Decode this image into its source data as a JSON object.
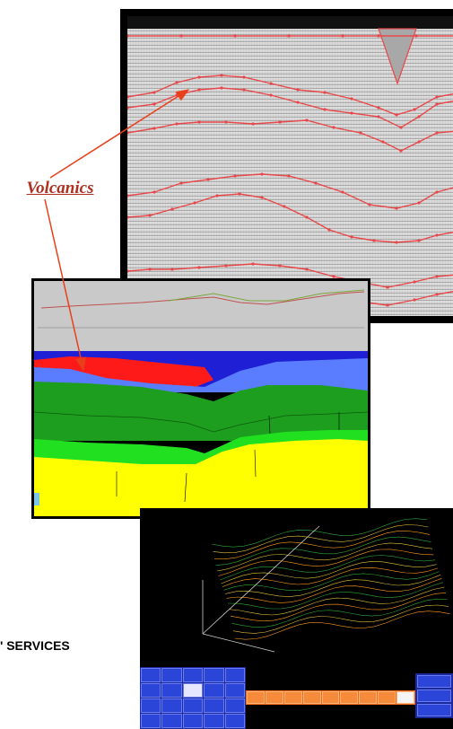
{
  "callout": {
    "label": "Volcanics",
    "color": "#b03020"
  },
  "side_text": {
    "services": "' SERVICES"
  },
  "seismic_panel": {
    "colors": {
      "horizon": "#e8474a",
      "background": "#bdbdbd"
    }
  },
  "cross_section": {
    "colors": {
      "blue_dark": "#1f1fd6",
      "red": "#ff1a1a",
      "blue_light": "#5a7cff",
      "green_dark": "#1e9e1e",
      "green_light": "#20e020",
      "yellow": "#ffff00",
      "top_panel": "#c9c9c9"
    }
  },
  "terrain_panel": {
    "colors": {
      "mesh_high": "#ff9b1a",
      "mesh_mid": "#e0c03a",
      "mesh_low": "#2fa83a",
      "background": "#000000"
    }
  }
}
